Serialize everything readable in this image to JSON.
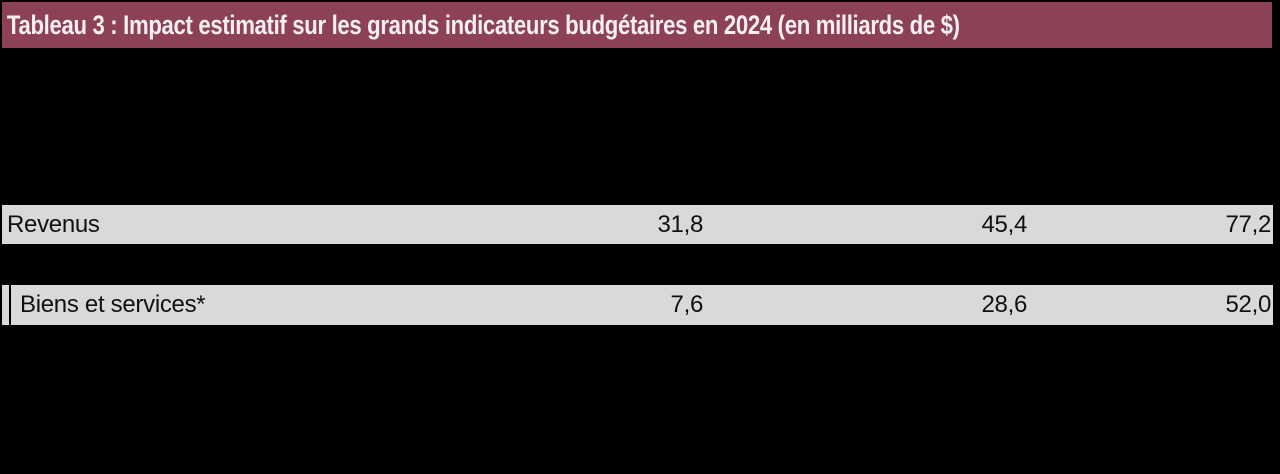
{
  "title": "Tableau 3 : Impact estimatif sur les grands indicateurs budgétaires en 2024 (en milliards de $)",
  "colors": {
    "title_bg": "#8D4156",
    "title_text": "#F4EFF1",
    "row_bg": "#D9D9D9",
    "row_text": "#111111",
    "canvas_bg": "#000000"
  },
  "chart_data": {
    "type": "table",
    "title": "Tableau 3 : Impact estimatif sur les grands indicateurs budgétaires en 2024 (en milliards de $)",
    "unit": "milliards de $",
    "year": "2024",
    "rows": [
      {
        "label": "Revenus",
        "indent": false,
        "values": [
          "31,8",
          "45,4",
          "77,2"
        ]
      },
      {
        "label": "Biens et services*",
        "indent": true,
        "values": [
          "7,6",
          "28,6",
          "52,0"
        ]
      }
    ]
  },
  "table": {
    "rows": [
      {
        "label": "Revenus",
        "values": [
          "31,8",
          "45,4",
          "77,2"
        ]
      },
      {
        "label": "Biens et services*",
        "values": [
          "7,6",
          "28,6",
          "52,0"
        ]
      }
    ]
  }
}
